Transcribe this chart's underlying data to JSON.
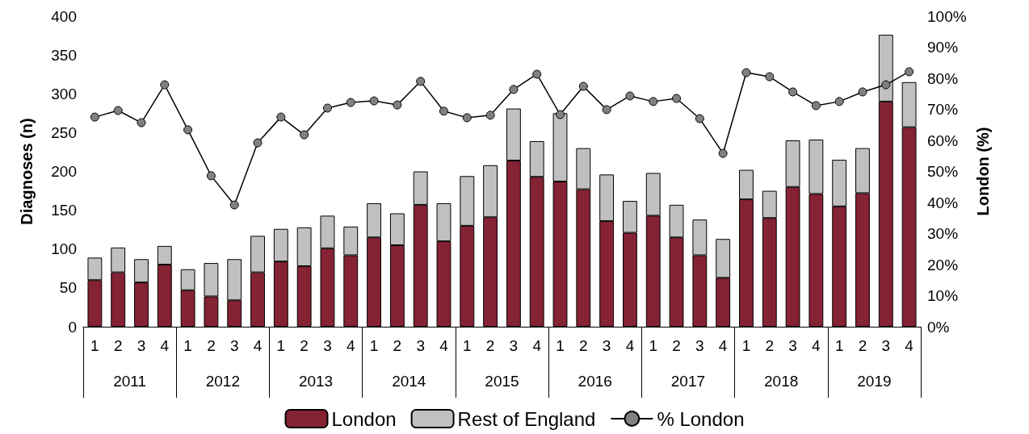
{
  "chart_data": {
    "type": "bar",
    "stacked": true,
    "ylabel": "Diagnoses (n)",
    "y2label": "London (%)",
    "categories": [
      "1",
      "2",
      "3",
      "4",
      "1",
      "2",
      "3",
      "4",
      "1",
      "2",
      "3",
      "4",
      "1",
      "2",
      "3",
      "4",
      "1",
      "2",
      "3",
      "4",
      "1",
      "2",
      "3",
      "4",
      "1",
      "2",
      "3",
      "4",
      "1",
      "2",
      "3",
      "4",
      "1",
      "2",
      "3",
      "4"
    ],
    "annotations": [
      "2011",
      "2012",
      "2013",
      "2014",
      "2015",
      "2016",
      "2017",
      "2018",
      "2019"
    ],
    "series": [
      {
        "name": "London",
        "color": "#852234",
        "values": [
          60,
          70,
          57,
          80,
          47,
          39,
          34,
          70,
          84,
          78,
          101,
          92,
          115,
          105,
          157,
          110,
          130,
          141,
          214,
          193,
          187,
          177,
          136,
          121,
          143,
          115,
          92,
          63,
          164,
          140,
          180,
          171,
          155,
          172,
          290,
          257
        ]
      },
      {
        "name": "Rest of England",
        "color": "#c0c0c0",
        "values": [
          29,
          32,
          30,
          24,
          27,
          43,
          53,
          47,
          42,
          50,
          42,
          37,
          44,
          41,
          43,
          49,
          64,
          67,
          67,
          46,
          88,
          53,
          60,
          41,
          55,
          42,
          46,
          50,
          38,
          35,
          60,
          70,
          60,
          58,
          86,
          58
        ]
      },
      {
        "name": "% London",
        "type": "line",
        "axis": "y2",
        "color": "#000000",
        "marker": "circle",
        "values": [
          67.5,
          69.6,
          65.7,
          77.9,
          63.4,
          48.6,
          39.2,
          59.2,
          67.5,
          61.8,
          70.4,
          72.2,
          72.7,
          71.4,
          79,
          69.4,
          67.3,
          68.1,
          76.4,
          81.3,
          68.3,
          77.4,
          69.9,
          74.3,
          72.5,
          73.5,
          67,
          55.8,
          81.8,
          80.5,
          75.6,
          71.2,
          72.5,
          75.6,
          77.9,
          82.1
        ]
      }
    ],
    "ylim": [
      0,
      400
    ],
    "yticks": [
      0,
      50,
      100,
      150,
      200,
      250,
      300,
      350,
      400
    ],
    "y2lim": [
      0,
      100
    ],
    "y2ticks": [
      {
        "value": 0,
        "label": "0%"
      },
      {
        "value": 10,
        "label": "10%"
      },
      {
        "value": 20,
        "label": "20%"
      },
      {
        "value": 30,
        "label": "30%"
      },
      {
        "value": 40,
        "label": "40%"
      },
      {
        "value": 50,
        "label": "50%"
      },
      {
        "value": 60,
        "label": "60%"
      },
      {
        "value": 70,
        "label": "70%"
      },
      {
        "value": 80,
        "label": "80%"
      },
      {
        "value": 90,
        "label": "90%"
      },
      {
        "value": 100,
        "label": "100%"
      }
    ],
    "grid": false,
    "legend": "bottom"
  }
}
